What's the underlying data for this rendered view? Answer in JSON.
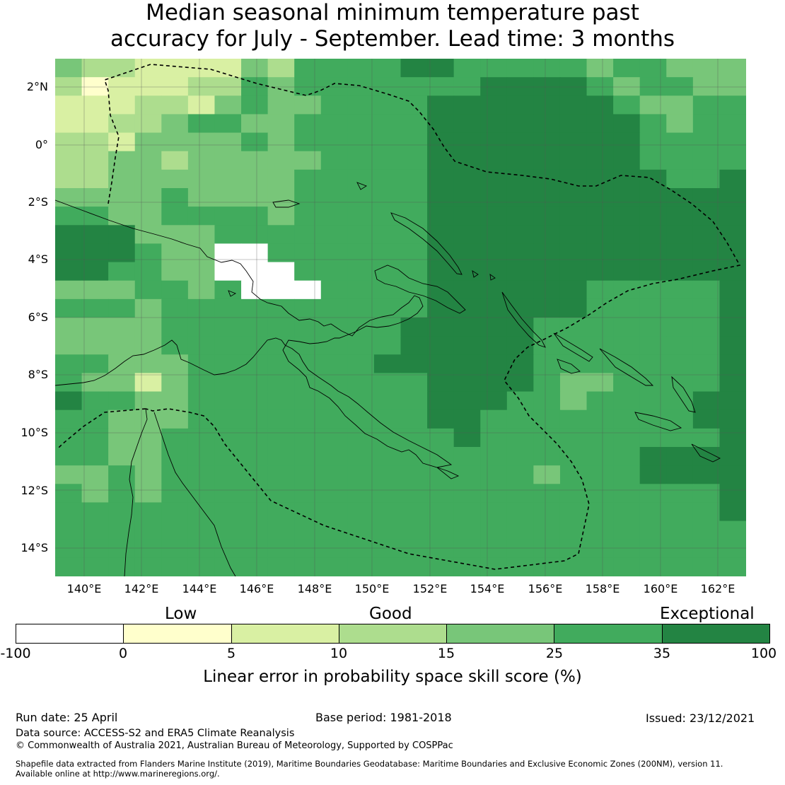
{
  "title_line1": "Median seasonal minimum temperature past",
  "title_line2": "accuracy for July - September. Lead time: 3 months",
  "lat_labels": [
    "2°N",
    "0°",
    "2°S",
    "4°S",
    "6°S",
    "8°S",
    "10°S",
    "12°S",
    "14°S"
  ],
  "lon_labels": [
    "140°E",
    "142°E",
    "144°E",
    "146°E",
    "148°E",
    "150°E",
    "152°E",
    "154°E",
    "156°E",
    "158°E",
    "160°E",
    "162°E"
  ],
  "colorbar": {
    "categories": [
      "Low",
      "Good",
      "Exceptional"
    ],
    "ticks": [
      "-100",
      "0",
      "5",
      "10",
      "15",
      "25",
      "35",
      "100"
    ],
    "colors": [
      "#ffffff",
      "#ffffcc",
      "#d9f0a3",
      "#addd8e",
      "#78c679",
      "#41ab5d",
      "#238443"
    ],
    "label": "Linear error in probability space skill score (%)"
  },
  "footer": {
    "run_date": "Run date: 25 April",
    "base_period": "Base period: 1981-2018",
    "issued": "Issued: 23/12/2021",
    "data_source": "Data source: ACCESS-S2 and ERA5 Climate Reanalysis",
    "copyright": "© Commonwealth of Australia 2021, Australian Bureau of Meteorology, Supported by COSPPac",
    "shapefile_line1": "Shapefile data extracted from Flanders Marine Institute (2019), Maritime Boundaries Geodatabase: Maritime Boundaries and Exclusive Economic Zones (200NM), version 11.",
    "shapefile_line2": "Available online at http://www.marineregions.org/."
  }
}
